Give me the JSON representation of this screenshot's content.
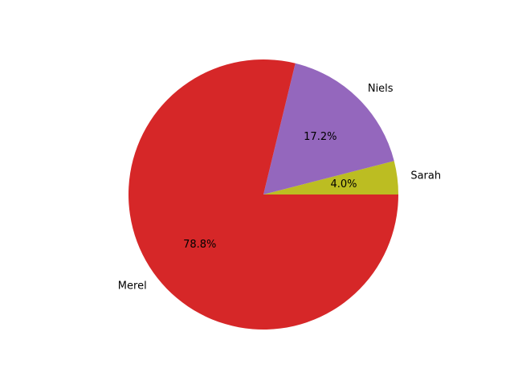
{
  "chart_data": {
    "type": "pie",
    "title": "",
    "slices": [
      {
        "label": "Sarah",
        "value": 4.0,
        "pct_label": "4.0%",
        "color": "#bcbd22"
      },
      {
        "label": "Niels",
        "value": 17.2,
        "pct_label": "17.2%",
        "color": "#9467bd"
      },
      {
        "label": "Merel",
        "value": 78.8,
        "pct_label": "78.8%",
        "color": "#d62728"
      }
    ],
    "start_angle_deg": 0,
    "direction": "counterclockwise",
    "legend": "none"
  }
}
